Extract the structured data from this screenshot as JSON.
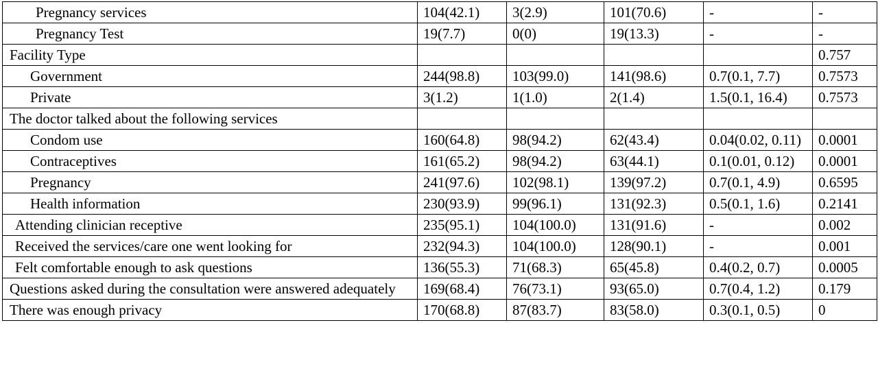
{
  "table": {
    "rows": [
      [
        "Pregnancy services",
        "104(42.1)",
        "3(2.9)",
        "101(70.6)",
        "-",
        "-"
      ],
      [
        "Pregnancy Test",
        "19(7.7)",
        "0(0)",
        "19(13.3)",
        "-",
        "-"
      ],
      [
        "Facility Type",
        null,
        null,
        null,
        null,
        "0.757"
      ],
      [
        "Government",
        "244(98.8)",
        "103(99.0)",
        "141(98.6)",
        "0.7(0.1, 7.7)",
        "0.7573"
      ],
      [
        "Private",
        "3(1.2)",
        "1(1.0)",
        "2(1.4)",
        "1.5(0.1, 16.4)",
        "0.7573"
      ],
      [
        "The doctor talked about the following services",
        null,
        null,
        null,
        null,
        null
      ],
      [
        "Condom use",
        "160(64.8)",
        "98(94.2)",
        "62(43.4)",
        "0.04(0.02, 0.11)",
        "0.0001"
      ],
      [
        "Contraceptives",
        "161(65.2)",
        "98(94.2)",
        "63(44.1)",
        "0.1(0.01, 0.12)",
        "0.0001"
      ],
      [
        "Pregnancy",
        "241(97.6)",
        "102(98.1)",
        "139(97.2)",
        "0.7(0.1, 4.9)",
        "0.6595"
      ],
      [
        "Health information",
        "230(93.9)",
        "99(96.1)",
        "131(92.3)",
        "0.5(0.1, 1.6)",
        "0.2141"
      ],
      [
        "Attending clinician receptive",
        "235(95.1)",
        "104(100.0)",
        "131(91.6)",
        "-",
        "0.002"
      ],
      [
        "Received the services/care one went looking for",
        "232(94.3)",
        "104(100.0)",
        "128(90.1)",
        "-",
        "0.001"
      ],
      [
        "Felt comfortable enough to ask questions",
        "136(55.3)",
        "71(68.3)",
        "65(45.8)",
        "0.4(0.2, 0.7)",
        "0.0005"
      ],
      [
        "Questions asked during the consultation were answered adequately",
        "169(68.4)",
        "76(73.1)",
        "93(65.0)",
        "0.7(0.4, 1.2)",
        "0.179"
      ],
      [
        "There was enough privacy",
        "170(68.8)",
        "87(83.7)",
        "83(58.0)",
        "0.3(0.1, 0.5)",
        "0"
      ]
    ]
  }
}
